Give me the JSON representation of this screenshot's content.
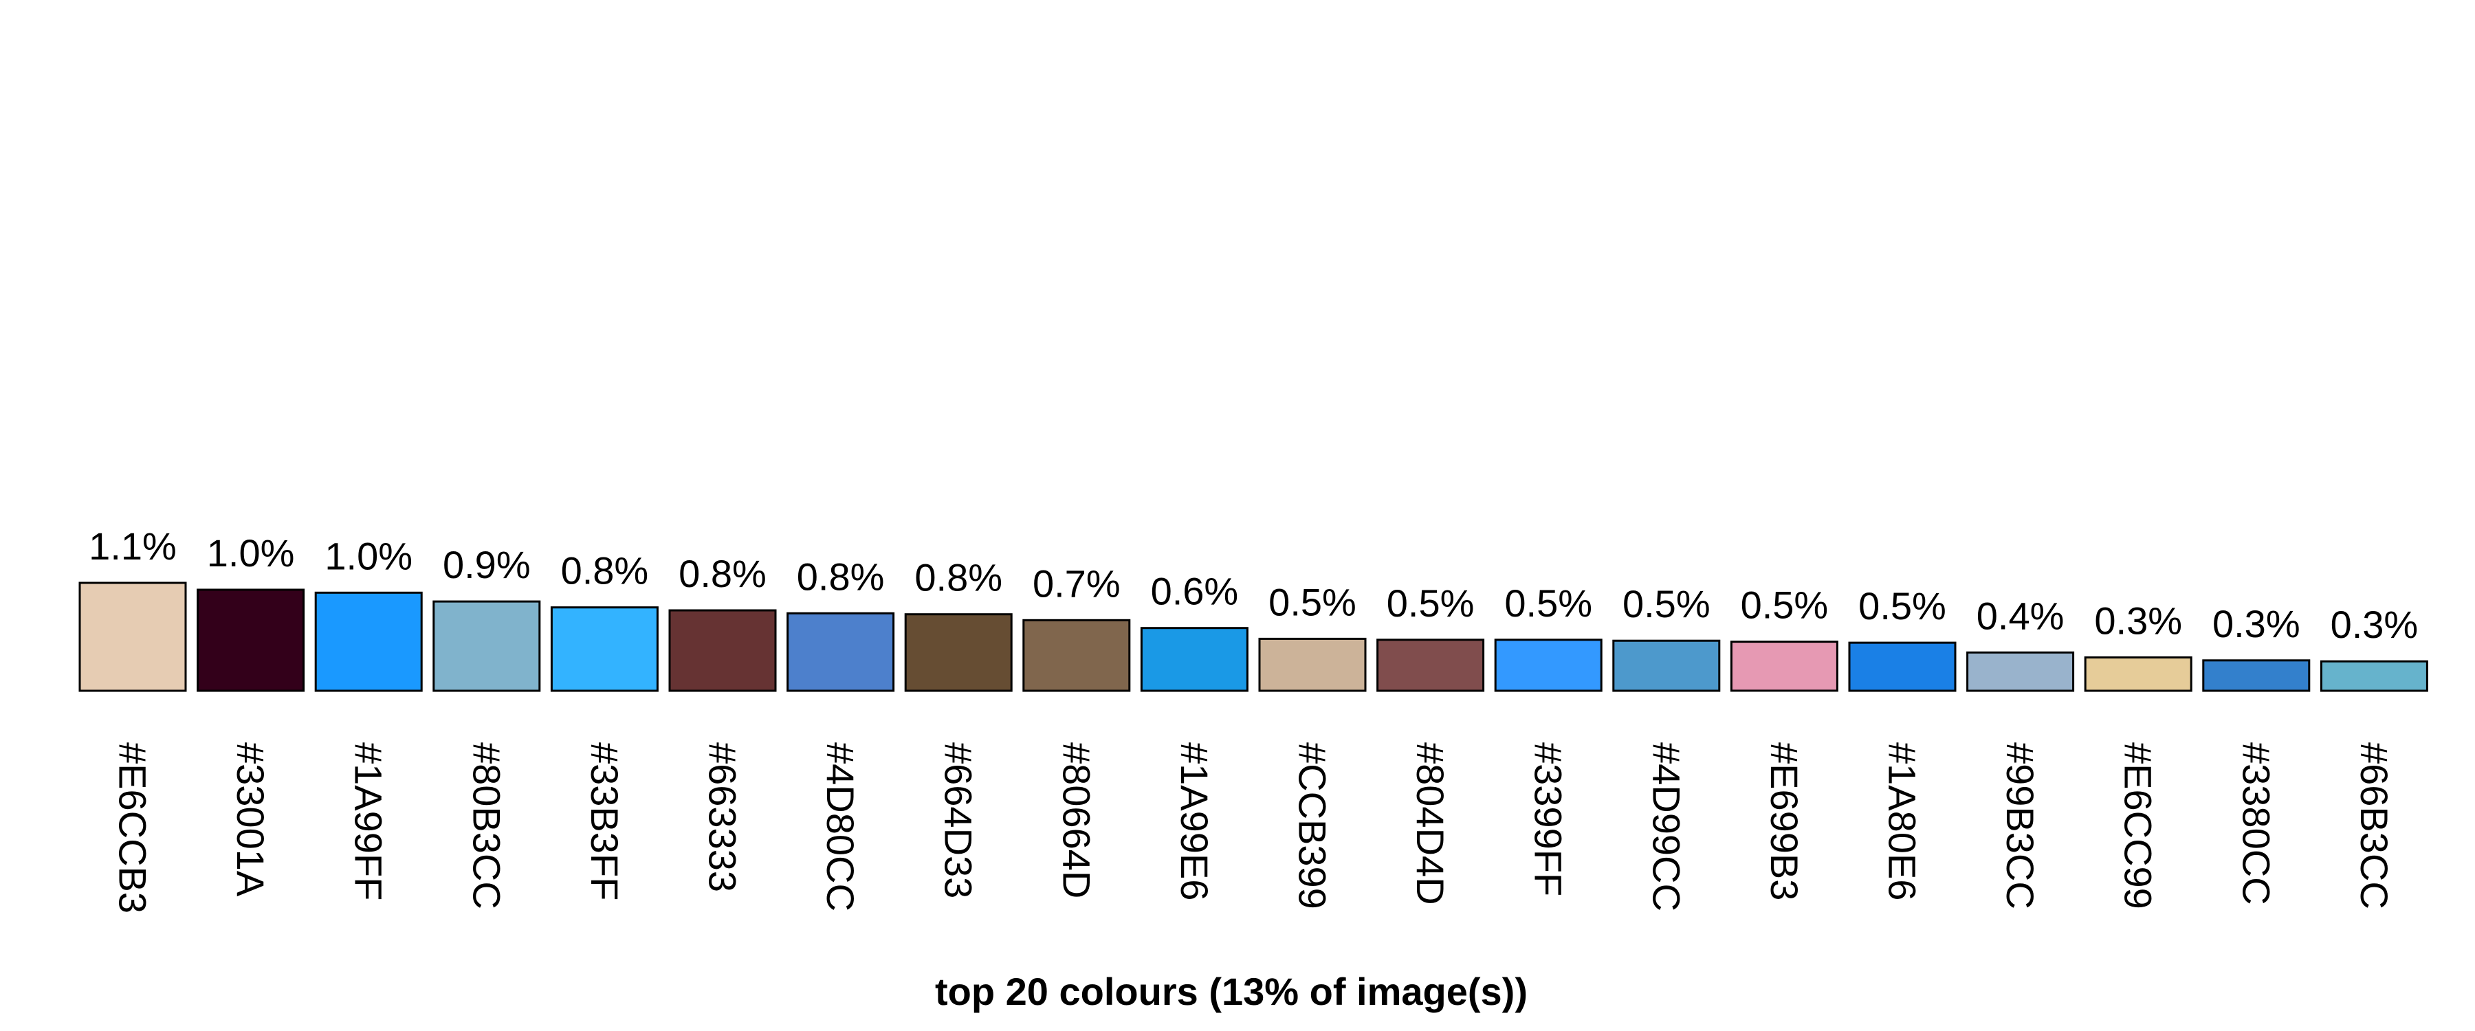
{
  "chart_data": {
    "type": "bar",
    "title": "top 20 colours (13% of image(s))",
    "xlabel": "",
    "ylabel": "",
    "ylim": [
      0,
      1.1
    ],
    "grid": false,
    "legend": "none",
    "categories": [
      "#E6CCB3",
      "#33001A",
      "#1A99FF",
      "#80B3CC",
      "#33B3FF",
      "#663333",
      "#4D80CC",
      "#664D33",
      "#80664D",
      "#1A99E6",
      "#CCB399",
      "#804D4D",
      "#3399FF",
      "#4D99CC",
      "#E699B3",
      "#1A80E6",
      "#99B3CC",
      "#E6CC99",
      "#3380CC",
      "#66B3CC"
    ],
    "values": [
      1.1,
      1.03,
      1.0,
      0.91,
      0.85,
      0.82,
      0.79,
      0.78,
      0.72,
      0.64,
      0.53,
      0.52,
      0.52,
      0.51,
      0.5,
      0.49,
      0.39,
      0.34,
      0.31,
      0.3
    ],
    "data_labels": [
      "1.1%",
      "1.0%",
      "1.0%",
      "0.9%",
      "0.8%",
      "0.8%",
      "0.8%",
      "0.8%",
      "0.7%",
      "0.6%",
      "0.5%",
      "0.5%",
      "0.5%",
      "0.5%",
      "0.5%",
      "0.5%",
      "0.4%",
      "0.3%",
      "0.3%",
      "0.3%"
    ],
    "colors": [
      "#E6CCB3",
      "#33001A",
      "#1A99FF",
      "#80B3CC",
      "#33B3FF",
      "#663333",
      "#4D80CC",
      "#664D33",
      "#80664D",
      "#1A99E6",
      "#CCB399",
      "#804D4D",
      "#3399FF",
      "#4D99CC",
      "#E699B3",
      "#1A80E6",
      "#99B3CC",
      "#E6CC99",
      "#3380CC",
      "#66B3CC"
    ]
  }
}
